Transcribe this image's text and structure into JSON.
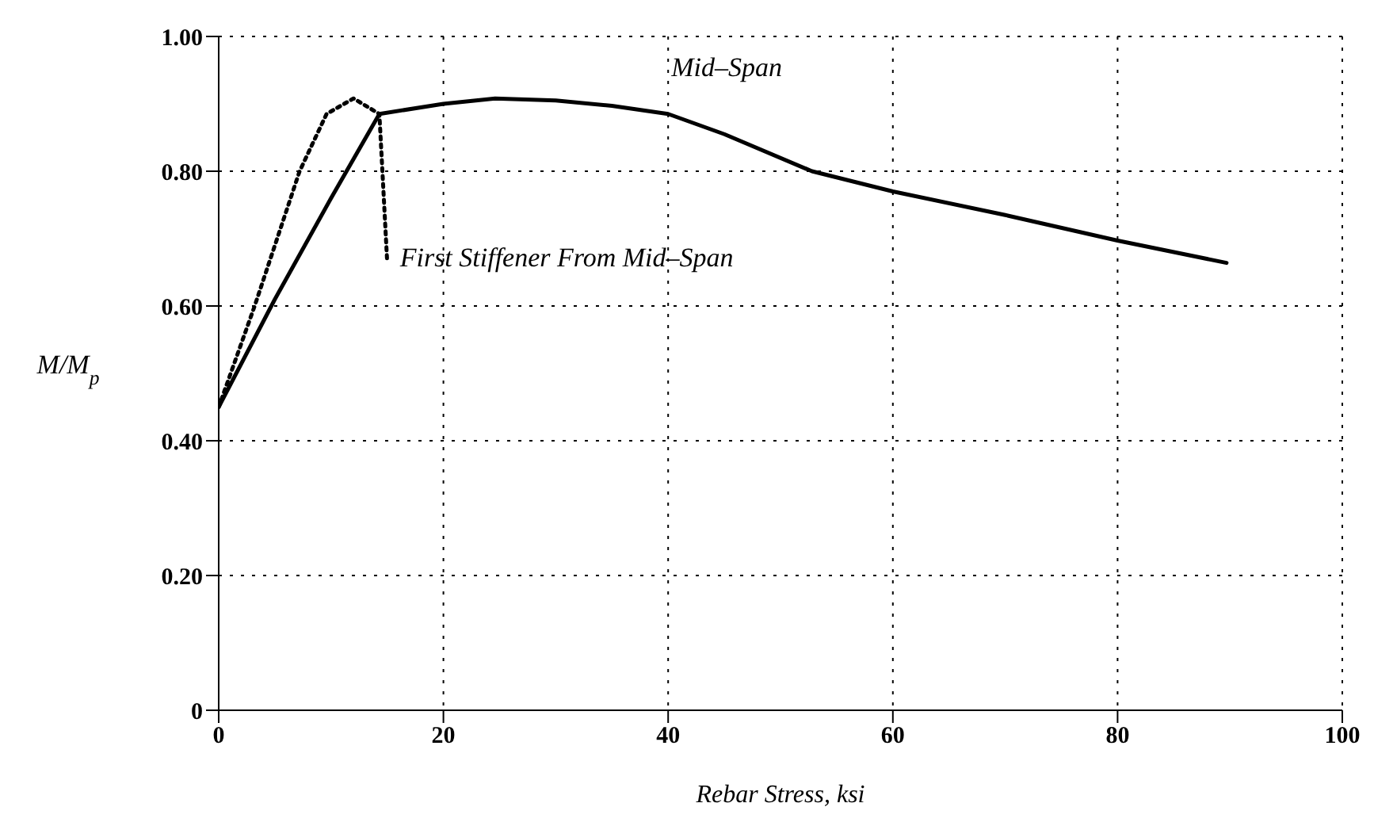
{
  "chart_data": {
    "type": "line",
    "xlabel": "Rebar Stress, ksi",
    "ylabel": "M/M$_{p}$",
    "series": [
      {
        "name": "Mid–Span",
        "color": "#000000",
        "line_style": "solid",
        "x": [
          0,
          5,
          10,
          14.3,
          20,
          24.6,
          30,
          35,
          40,
          45,
          52.8,
          60,
          70,
          80,
          89.7
        ],
        "values": [
          0.45,
          0.61,
          0.76,
          0.885,
          0.9,
          0.908,
          0.905,
          0.897,
          0.885,
          0.855,
          0.8,
          0.77,
          0.735,
          0.697,
          0.664
        ]
      },
      {
        "name": "First Stiffener From Mid–Span",
        "color": "#000000",
        "line_style": "dotted",
        "x": [
          0,
          3.2,
          7.2,
          9.6,
          12,
          14.3,
          15
        ],
        "values": [
          0.45,
          0.6,
          0.8,
          0.885,
          0.908,
          0.885,
          0.664
        ]
      }
    ],
    "xlim": [
      0,
      100
    ],
    "xticks": [
      0,
      20,
      40,
      60,
      80,
      100
    ],
    "ylim": [
      0,
      1
    ],
    "yticks": [
      {
        "value": 0,
        "label": "0"
      },
      {
        "value": 0.2,
        "label": "0.20"
      },
      {
        "value": 0.4,
        "label": "0.40"
      },
      {
        "value": 0.6,
        "label": "0.60"
      },
      {
        "value": 0.8,
        "label": "0.80"
      },
      {
        "value": 1,
        "label": "1.00"
      }
    ],
    "grid": true,
    "marker": "none"
  }
}
